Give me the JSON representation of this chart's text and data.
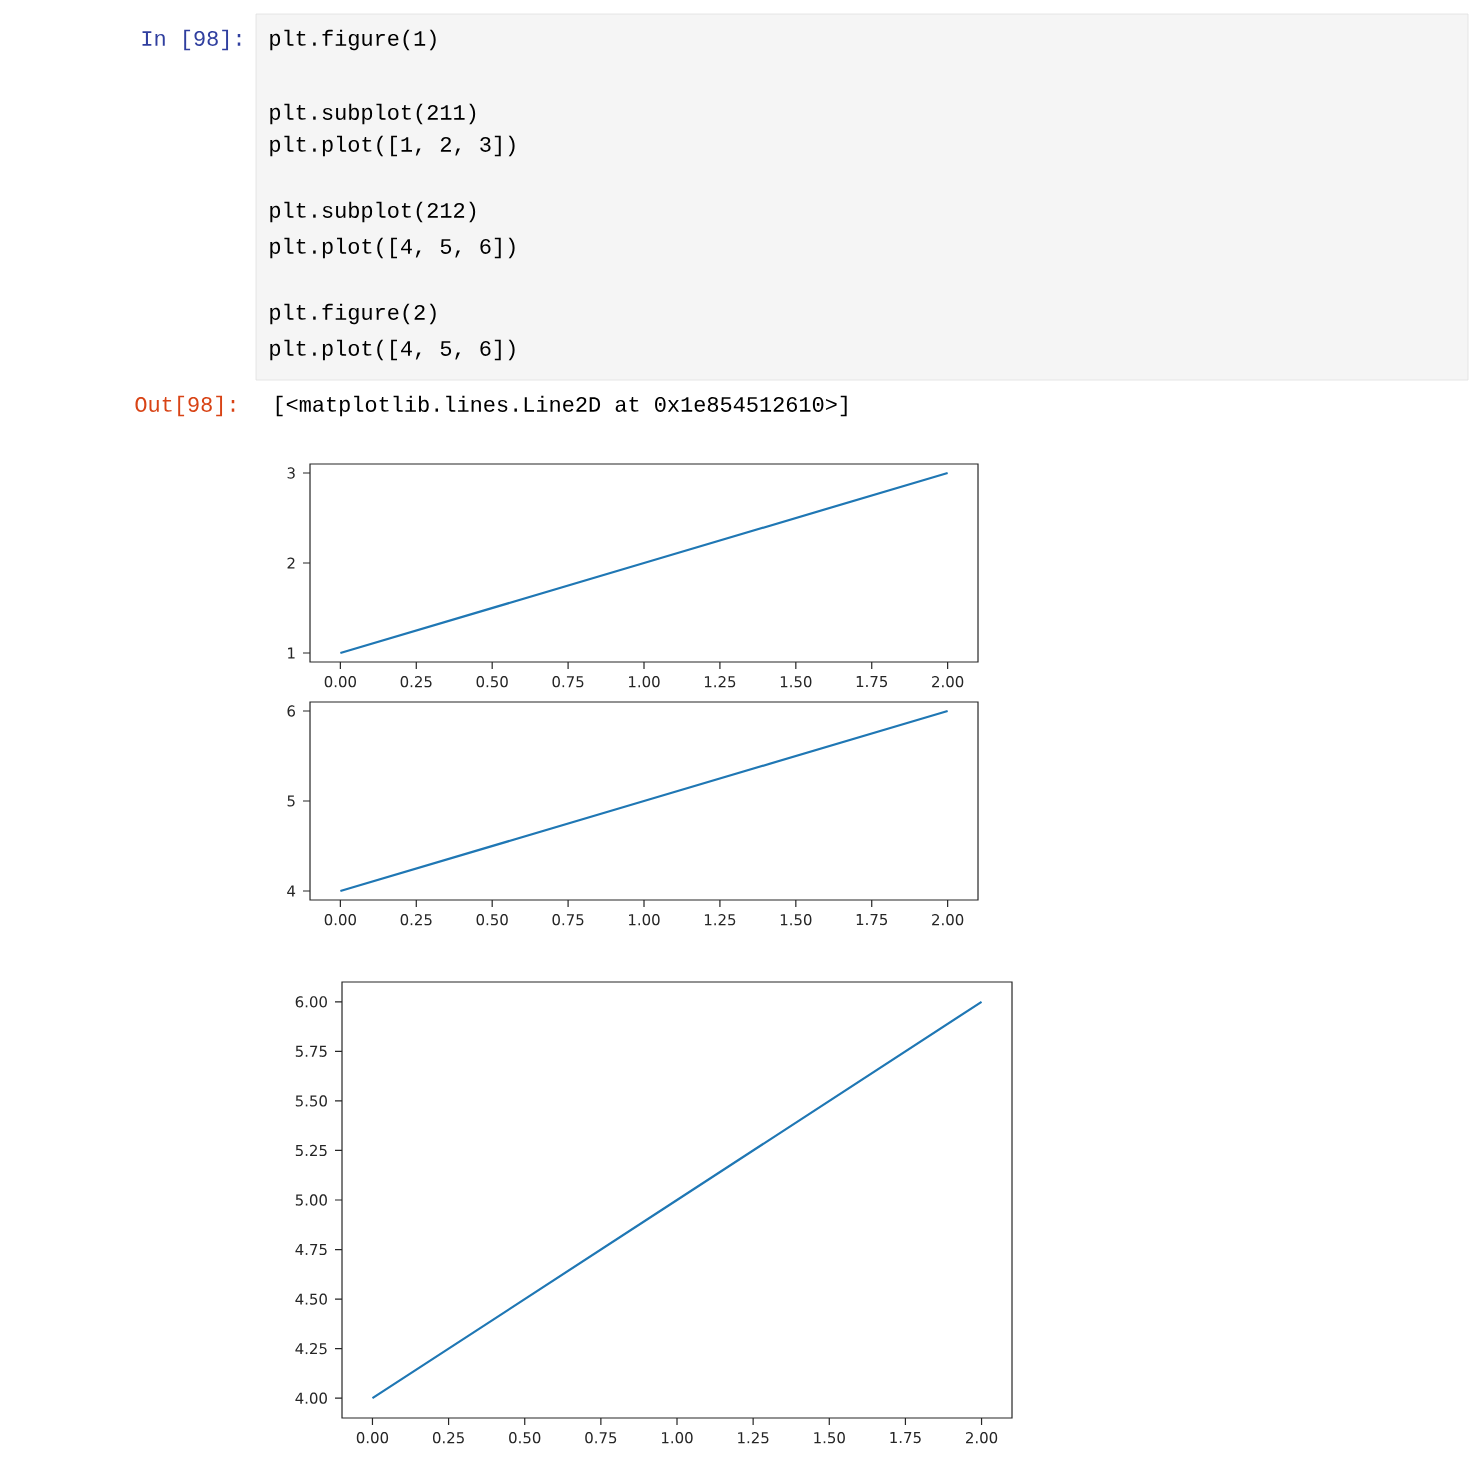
{
  "chart_data": [
    {
      "type": "other",
      "annotations": [
        "In [98]:",
        "plt.figure(1)",
        "plt.subplot(211)",
        "plt.plot([1, 2, 3])",
        "plt.subplot(212)",
        "plt.plot([4, 5, 6])",
        "plt.figure(2)",
        "plt.plot([4, 5, 6])",
        "Out[98]:",
        "[<matplotlib.lines.Line2D at 0x1e854512610>]"
      ]
    },
    {
      "type": "line",
      "x": [
        0,
        1,
        2
      ],
      "values": [
        1,
        2,
        3
      ],
      "color": "#1f77b4",
      "xlim": [
        -0.1,
        2.1
      ],
      "ylim": [
        0.9,
        3.1
      ],
      "xticks": [
        {
          "value": 0,
          "label": "0.00"
        },
        {
          "value": 0.25,
          "label": "0.25"
        },
        {
          "value": 0.5,
          "label": "0.50"
        },
        {
          "value": 0.75,
          "label": "0.75"
        },
        {
          "value": 1,
          "label": "1.00"
        },
        {
          "value": 1.25,
          "label": "1.25"
        },
        {
          "value": 1.5,
          "label": "1.50"
        },
        {
          "value": 1.75,
          "label": "1.75"
        },
        {
          "value": 2,
          "label": "2.00"
        }
      ],
      "yticks": [
        1,
        2,
        3
      ]
    },
    {
      "type": "line",
      "x": [
        0,
        1,
        2
      ],
      "values": [
        4,
        5,
        6
      ],
      "color": "#1f77b4",
      "xlim": [
        -0.1,
        2.1
      ],
      "ylim": [
        3.9,
        6.1
      ],
      "xticks": [
        {
          "value": 0,
          "label": "0.00"
        },
        {
          "value": 0.25,
          "label": "0.25"
        },
        {
          "value": 0.5,
          "label": "0.50"
        },
        {
          "value": 0.75,
          "label": "0.75"
        },
        {
          "value": 1,
          "label": "1.00"
        },
        {
          "value": 1.25,
          "label": "1.25"
        },
        {
          "value": 1.5,
          "label": "1.50"
        },
        {
          "value": 1.75,
          "label": "1.75"
        },
        {
          "value": 2,
          "label": "2.00"
        }
      ],
      "yticks": [
        4,
        5,
        6
      ]
    },
    {
      "type": "line",
      "x": [
        0,
        1,
        2
      ],
      "values": [
        4,
        5,
        6
      ],
      "color": "#1f77b4",
      "xlim": [
        -0.1,
        2.1
      ],
      "ylim": [
        3.9,
        6.1
      ],
      "xticks": [
        {
          "value": 0,
          "label": "0.00"
        },
        {
          "value": 0.25,
          "label": "0.25"
        },
        {
          "value": 0.5,
          "label": "0.50"
        },
        {
          "value": 0.75,
          "label": "0.75"
        },
        {
          "value": 1,
          "label": "1.00"
        },
        {
          "value": 1.25,
          "label": "1.25"
        },
        {
          "value": 1.5,
          "label": "1.50"
        },
        {
          "value": 1.75,
          "label": "1.75"
        },
        {
          "value": 2,
          "label": "2.00"
        }
      ],
      "yticks": [
        {
          "value": 4,
          "label": "4.00"
        },
        {
          "value": 4.25,
          "label": "4.25"
        },
        {
          "value": 4.5,
          "label": "4.50"
        },
        {
          "value": 4.75,
          "label": "4.75"
        },
        {
          "value": 5,
          "label": "5.00"
        },
        {
          "value": 5.25,
          "label": "5.25"
        },
        {
          "value": 5.5,
          "label": "5.50"
        },
        {
          "value": 5.75,
          "label": "5.75"
        },
        {
          "value": 6,
          "label": "6.00"
        }
      ]
    }
  ]
}
